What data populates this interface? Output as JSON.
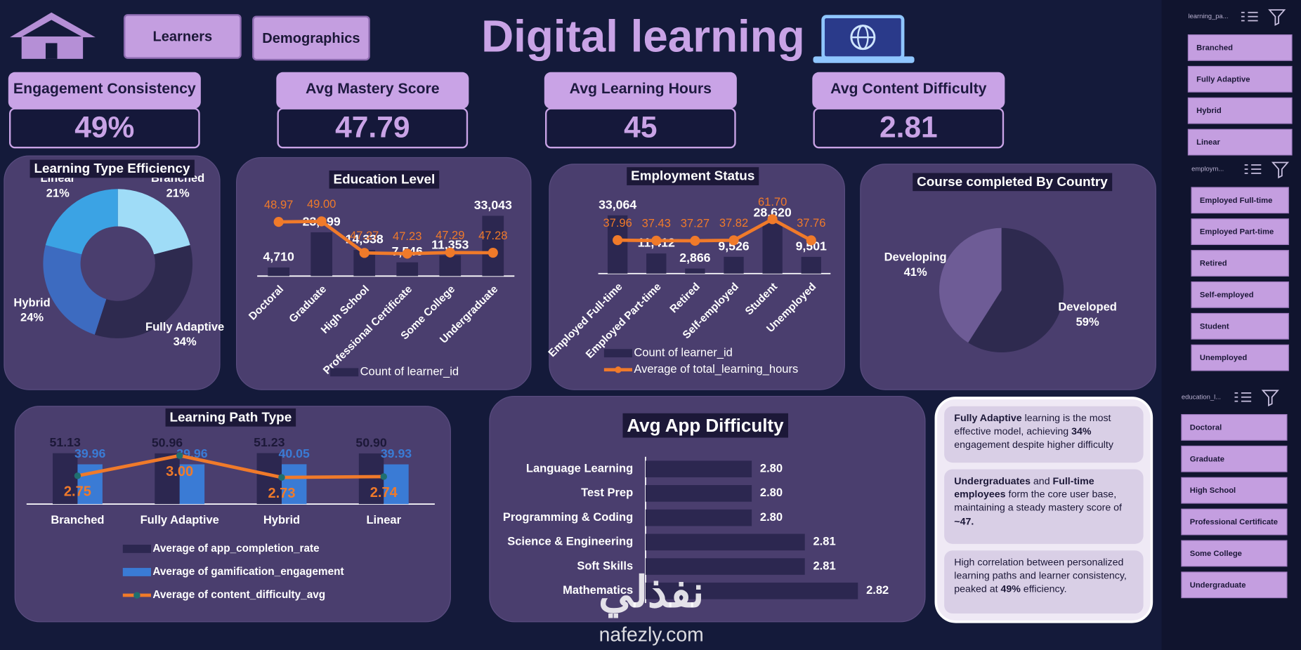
{
  "nav": {
    "buttons": [
      "Learners",
      "Demographics"
    ]
  },
  "title": "Digital learning",
  "kpis": [
    {
      "label": "Engagement Consistency",
      "value": "49%"
    },
    {
      "label": "Avg Mastery Score",
      "value": "47.79"
    },
    {
      "label": "Avg Learning Hours",
      "value": "45"
    },
    {
      "label": "Avg Content Difficulty",
      "value": "2.81"
    }
  ],
  "chart_data": [
    {
      "type": "donut",
      "title": "Learning Type Efficiency",
      "categories": [
        "Branched",
        "Fully Adaptive",
        "Hybrid",
        "Linear"
      ],
      "values": [
        21,
        34,
        24,
        21
      ],
      "value_labels": [
        "21%",
        "34%",
        "24%",
        "21%"
      ],
      "colors": [
        "#9fdcf7",
        "#2e2a4f",
        "#3d6bc0",
        "#3ba3e4"
      ]
    },
    {
      "type": "combo",
      "title": "Education Level",
      "categories": [
        "Doctoral",
        "Graduate",
        "High School",
        "Professional Certificate",
        "Some College",
        "Undergraduate"
      ],
      "series": [
        {
          "name": "Count of learner_id",
          "type": "bar",
          "color": "#2c2750",
          "values": [
            4710,
            23999,
            14338,
            7546,
            11353,
            33043
          ],
          "value_labels": [
            "4,710",
            "23,999",
            "14,338",
            "7,546",
            "11,353",
            "33,043"
          ]
        },
        {
          "type": "line",
          "axis": "y2",
          "color": "#f07a2a",
          "values": [
            48.97,
            49.0,
            47.27,
            47.23,
            47.29,
            47.28
          ],
          "value_labels": [
            "48.97",
            "49.00",
            "47.27",
            "47.23",
            "47.29",
            "47.28"
          ]
        }
      ],
      "ylim": [
        0,
        40000
      ],
      "y2lim": [
        46,
        50
      ],
      "legend": "bottom"
    },
    {
      "type": "combo",
      "title": "Employment Status",
      "categories": [
        "Employed Full-time",
        "Employed Part-time",
        "Retired",
        "Self-employed",
        "Student",
        "Unemployed"
      ],
      "series": [
        {
          "name": "Count of learner_id",
          "type": "bar",
          "color": "#2c2750",
          "values": [
            33064,
            11412,
            2866,
            9526,
            28620,
            9501
          ],
          "value_labels": [
            "33,064",
            "11,412",
            "2,866",
            "9,526",
            "28,620",
            "9,501"
          ]
        },
        {
          "name": "Average of total_learning_hours",
          "type": "line",
          "axis": "y2",
          "color": "#f07a2a",
          "values": [
            37.96,
            37.43,
            37.27,
            37.82,
            61.7,
            37.76
          ],
          "value_labels": [
            "37.96",
            "37.43",
            "37.27",
            "37.82",
            "61.70",
            "37.76"
          ]
        }
      ],
      "ylim": [
        0,
        40000
      ],
      "y2lim": [
        0,
        80
      ],
      "legend": "bottom"
    },
    {
      "type": "pie",
      "title": "Course completed By Country",
      "categories": [
        "Developed",
        "Developing"
      ],
      "values": [
        59,
        41
      ],
      "value_labels": [
        "59%",
        "41%"
      ],
      "colors": [
        "#2e2a4f",
        "#6e5c96"
      ]
    },
    {
      "type": "combo",
      "title": "Learning Path Type",
      "categories": [
        "Branched",
        "Fully Adaptive",
        "Hybrid",
        "Linear"
      ],
      "series": [
        {
          "name": "Average of app_completion_rate",
          "type": "bar",
          "color": "#2c2750",
          "values": [
            51.13,
            50.96,
            51.23,
            50.9
          ],
          "value_labels": [
            "51.13",
            "50.96",
            "51.23",
            "50.90"
          ]
        },
        {
          "name": "Average of gamification_engagement",
          "type": "bar",
          "color": "#3a7bd5",
          "values": [
            39.96,
            39.96,
            40.05,
            39.93
          ],
          "value_labels": [
            "39.96",
            "39.96",
            "40.05",
            "39.93"
          ]
        },
        {
          "name": "Average of content_difficulty_avg",
          "type": "line",
          "axis": "y2",
          "color": "#f07a2a",
          "values": [
            2.75,
            3.0,
            2.73,
            2.74
          ],
          "value_labels": [
            "2.75",
            "3.00",
            "2.73",
            "2.74"
          ]
        }
      ],
      "ylim": [
        0,
        65
      ],
      "y2lim": [
        2.4,
        3.2
      ],
      "legend": "bottom"
    },
    {
      "type": "hbar",
      "title": "Avg App Difficulty",
      "categories": [
        "Language Learning",
        "Test Prep",
        "Programming & Coding",
        "Science & Engineering",
        "Soft Skills",
        "Mathematics"
      ],
      "values": [
        2.8,
        2.8,
        2.8,
        2.81,
        2.81,
        2.82
      ],
      "value_labels": [
        "2.80",
        "2.80",
        "2.80",
        "2.81",
        "2.81",
        "2.82"
      ],
      "color": "#2c2750",
      "xlim": [
        2.78,
        2.82
      ]
    }
  ],
  "insights": [
    {
      "runs": [
        {
          "text": "Fully Adaptive",
          "bold": true
        },
        {
          "text": " learning is the most effective model, achieving "
        },
        {
          "text": "34%",
          "bold": true
        },
        {
          "text": " engagement despite higher difficulty"
        }
      ]
    },
    {
      "runs": [
        {
          "text": "Undergraduates",
          "bold": true
        },
        {
          "text": " and "
        },
        {
          "text": "Full-time employees",
          "bold": true
        },
        {
          "text": " form the core user base, maintaining a steady mastery score of "
        },
        {
          "text": "~47.",
          "bold": true
        }
      ]
    },
    {
      "runs": [
        {
          "text": "High correlation between personalized learning paths and learner consistency, peaked at "
        },
        {
          "text": "49%",
          "bold": true
        },
        {
          "text": " efficiency."
        }
      ]
    }
  ],
  "slicers": [
    {
      "header": "learning_pa...",
      "items": [
        "Branched",
        "Fully Adaptive",
        "Hybrid",
        "Linear"
      ]
    },
    {
      "header": "employm...",
      "items": [
        "Employed Full-time",
        "Employed Part-time",
        "Retired",
        "Self-employed",
        "Student",
        "Unemployed"
      ]
    },
    {
      "header": "education_l...",
      "items": [
        "Doctoral",
        "Graduate",
        "High School",
        "Professional Certificate",
        "Some College",
        "Undergraduate"
      ]
    }
  ],
  "watermark": {
    "arabic": "نفذلي",
    "latin": "nafezly.com"
  }
}
